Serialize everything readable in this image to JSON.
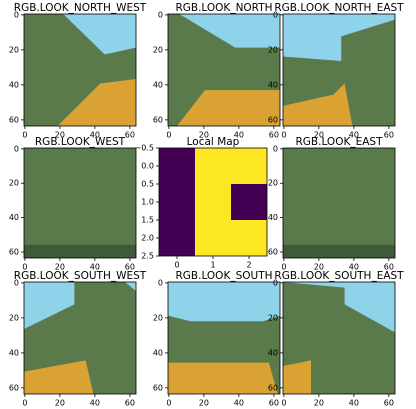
{
  "chart_data": [
    {
      "type": "image",
      "title": "RGB.LOOK_NORTH_WEST",
      "xlim": [
        -0.5,
        63.5
      ],
      "ylim": [
        63.5,
        -0.5
      ],
      "xticks": [
        0,
        20,
        40,
        60
      ],
      "yticks": [
        0,
        20,
        40,
        60
      ]
    },
    {
      "type": "image",
      "title": "RGB.LOOK_NORTH",
      "xlim": [
        -0.5,
        63.5
      ],
      "ylim": [
        63.5,
        -0.5
      ],
      "xticks": [
        0,
        20,
        40,
        60
      ],
      "yticks": [
        0,
        20,
        40,
        60
      ]
    },
    {
      "type": "image",
      "title": "RGB.LOOK_NORTH_EAST",
      "xlim": [
        -0.5,
        63.5
      ],
      "ylim": [
        63.5,
        -0.5
      ],
      "xticks": [
        0,
        20,
        40,
        60
      ],
      "yticks": [
        0,
        20,
        40,
        60
      ]
    },
    {
      "type": "image",
      "title": "RGB.LOOK_WEST",
      "xlim": [
        -0.5,
        63.5
      ],
      "ylim": [
        63.5,
        -0.5
      ],
      "xticks": [
        0,
        20,
        40,
        60
      ],
      "yticks": [
        0,
        20,
        40,
        60
      ]
    },
    {
      "type": "heatmap",
      "title": "Local Map",
      "values": [
        [
          0,
          1,
          1
        ],
        [
          0,
          1,
          0
        ],
        [
          0,
          1,
          1
        ]
      ],
      "colors": [
        "#440154",
        "#fde725"
      ],
      "xlim": [
        -0.5,
        2.5
      ],
      "ylim": [
        2.5,
        -0.5
      ],
      "xticks": [
        0,
        1,
        2
      ],
      "yticks": [
        {
          "value": -0.5,
          "label": "−0.5"
        },
        {
          "value": 0,
          "label": "0.0"
        },
        {
          "value": 0.5,
          "label": "0.5"
        },
        {
          "value": 1,
          "label": "1.0"
        },
        {
          "value": 1.5,
          "label": "1.5"
        },
        {
          "value": 2,
          "label": "2.0"
        },
        {
          "value": 2.5,
          "label": "2.5"
        }
      ]
    },
    {
      "type": "image",
      "title": "RGB.LOOK_EAST",
      "xlim": [
        -0.5,
        63.5
      ],
      "ylim": [
        63.5,
        -0.5
      ],
      "xticks": [
        0,
        20,
        40,
        60
      ],
      "yticks": [
        0,
        20,
        40,
        60
      ]
    },
    {
      "type": "image",
      "title": "RGB.LOOK_SOUTH_WEST",
      "xlim": [
        -0.5,
        63.5
      ],
      "ylim": [
        63.5,
        -0.5
      ],
      "xticks": [
        0,
        20,
        40,
        60
      ],
      "yticks": [
        0,
        20,
        40,
        60
      ]
    },
    {
      "type": "image",
      "title": "RGB.LOOK_SOUTH",
      "xlim": [
        -0.5,
        63.5
      ],
      "ylim": [
        63.5,
        -0.5
      ],
      "xticks": [
        0,
        20,
        40,
        60
      ],
      "yticks": [
        0,
        20,
        40,
        60
      ]
    },
    {
      "type": "image",
      "title": "RGB.LOOK_SOUTH_EAST",
      "xlim": [
        -0.5,
        63.5
      ],
      "ylim": [
        63.5,
        -0.5
      ],
      "xticks": [
        0,
        20,
        40,
        60
      ],
      "yticks": [
        0,
        20,
        40,
        60
      ]
    }
  ]
}
